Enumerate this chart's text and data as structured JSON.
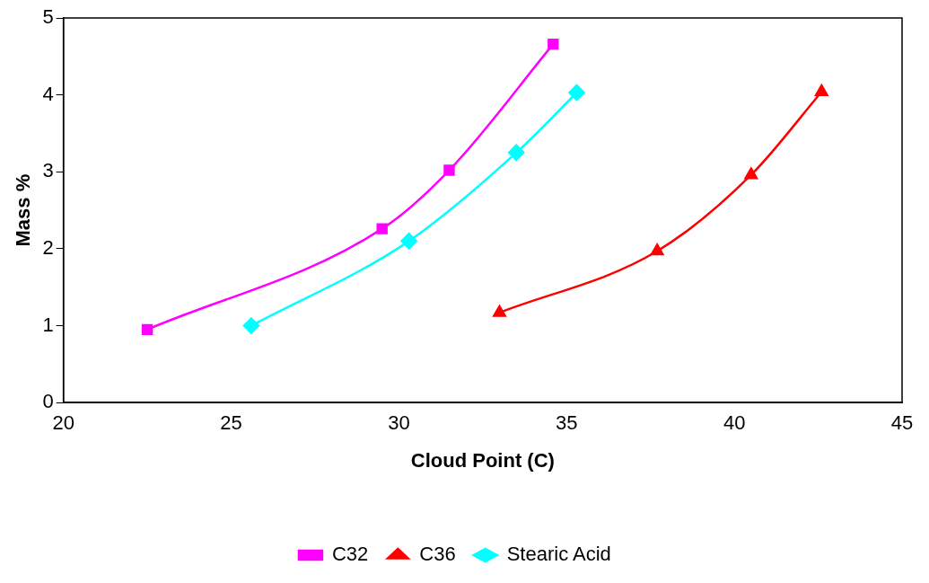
{
  "chart_data": {
    "type": "line",
    "xlabel": "Cloud Point (C)",
    "ylabel": "Mass %",
    "series": [
      {
        "name": "C32",
        "color": "#ff00ff",
        "marker": "square",
        "x": [
          22.5,
          29.5,
          31.5,
          34.6
        ],
        "values": [
          0.95,
          2.26,
          3.02,
          4.66
        ]
      },
      {
        "name": "C36",
        "color": "#ff0000",
        "marker": "triangle",
        "x": [
          33.0,
          37.7,
          40.5,
          42.6
        ],
        "values": [
          1.17,
          1.97,
          2.96,
          4.04
        ]
      },
      {
        "name": "Stearic Acid",
        "color": "#00ffff",
        "marker": "diamond",
        "x": [
          25.6,
          30.3,
          33.5,
          35.3
        ],
        "values": [
          1.0,
          2.1,
          3.25,
          4.03
        ]
      }
    ],
    "xlim": [
      20,
      45
    ],
    "xticks": [
      20,
      25,
      30,
      35,
      40,
      45
    ],
    "ylim": [
      0,
      5
    ],
    "yticks": [
      0,
      1,
      2,
      3,
      4,
      5
    ],
    "grid": false,
    "legend": "bottom",
    "line_style": "solid"
  }
}
